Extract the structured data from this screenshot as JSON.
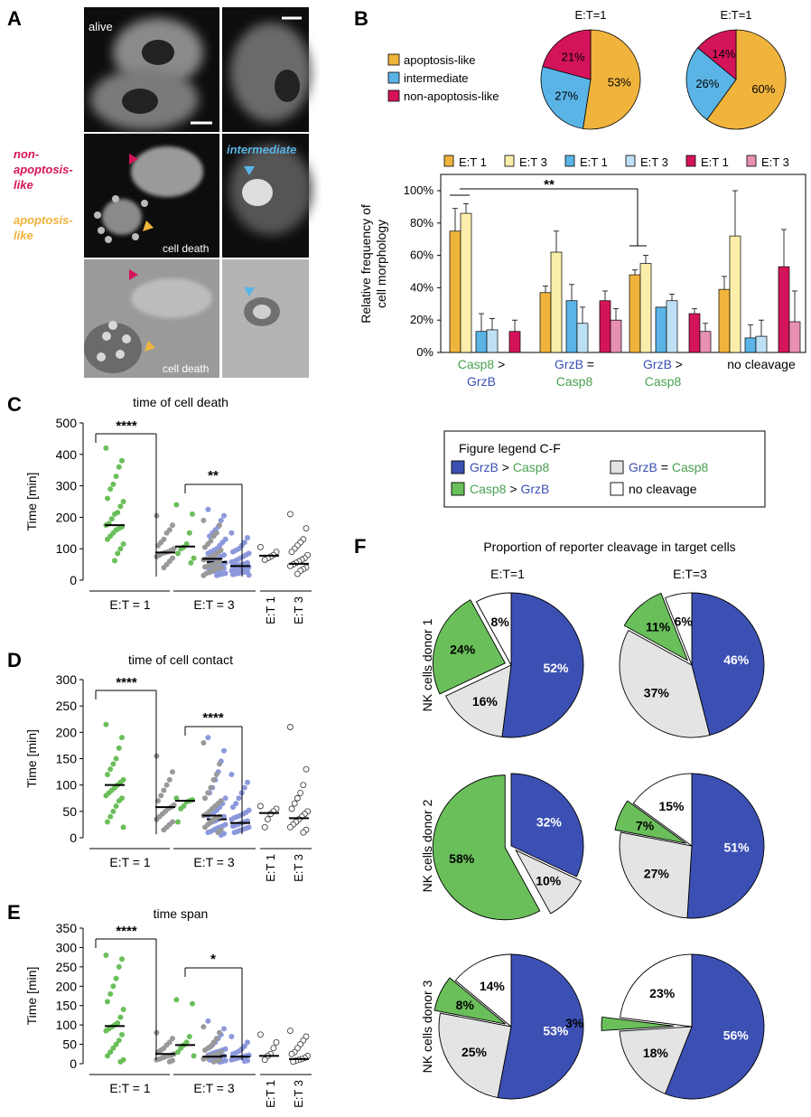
{
  "panels": {
    "A": "A",
    "B": "B",
    "C": "C",
    "D": "D",
    "E": "E",
    "F": "F"
  },
  "panelA": {
    "alive": "alive",
    "nonapop": [
      "non-",
      "apoptosis-",
      "like"
    ],
    "apop": [
      "apoptosis-",
      "like"
    ],
    "intermediate": "intermediate",
    "cell_death": "cell death",
    "colors": {
      "nonapop": "#d4145a",
      "apop": "#f0b43c",
      "intermediate": "#5ab4e6"
    }
  },
  "panelB": {
    "legend": [
      "apoptosis-like",
      "intermediate",
      "non-apoptosis-like"
    ],
    "legend_colors": [
      "#f0b43c",
      "#5ab4e6",
      "#d4145a"
    ],
    "pies": [
      {
        "title": "E:T=1",
        "slices": [
          {
            "label": "53%",
            "value": 53,
            "color": "#f0b43c"
          },
          {
            "label": "27%",
            "value": 27,
            "color": "#5ab4e6"
          },
          {
            "label": "21%",
            "value": 21,
            "color": "#d4145a"
          }
        ]
      },
      {
        "title": "E:T=1",
        "slices": [
          {
            "label": "60%",
            "value": 60,
            "color": "#f0b43c"
          },
          {
            "label": "26%",
            "value": 26,
            "color": "#5ab4e6"
          },
          {
            "label": "14%",
            "value": 14,
            "color": "#d4145a"
          }
        ]
      }
    ],
    "bar_legend": [
      {
        "label": "E:T 1",
        "color": "#f0b43c"
      },
      {
        "label": "E:T 3",
        "color": "#fbeeaa"
      },
      {
        "label": "E:T 1",
        "color": "#5ab4e6"
      },
      {
        "label": "E:T 3",
        "color": "#bee0f5"
      },
      {
        "label": "E:T 1",
        "color": "#d4145a"
      },
      {
        "label": "E:T 3",
        "color": "#e890b4"
      }
    ],
    "ylabel": [
      "Relative frequency of",
      "cell morphology"
    ],
    "yticks": [
      "0%",
      "20%",
      "40%",
      "60%",
      "80%",
      "100%"
    ],
    "significance": "**",
    "groups": [
      {
        "lines": [
          {
            "t": "Casp8",
            "c": "#4aa050"
          },
          {
            "t": "GrzB",
            "c": "#3c50b4"
          }
        ],
        "sep": " >"
      },
      {
        "lines": [
          {
            "t": "GrzB",
            "c": "#3c50b4"
          },
          {
            "t": "Casp8",
            "c": "#4aa050"
          }
        ],
        "sep": " ="
      },
      {
        "lines": [
          {
            "t": "GrzB",
            "c": "#3c50b4"
          },
          {
            "t": "Casp8",
            "c": "#4aa050"
          }
        ],
        "sep": " >"
      },
      {
        "lines": [
          {
            "t": "no cleavage",
            "c": "#000000"
          }
        ],
        "sep": ""
      }
    ]
  },
  "chart_data": {
    "type": "bar",
    "categories": [
      "Casp8 > GrzB",
      "GrzB = Casp8",
      "GrzB > Casp8",
      "no cleavage"
    ],
    "series_labels": [
      "apoptosis-like E:T 1",
      "apoptosis-like E:T 3",
      "intermediate E:T 1",
      "intermediate E:T 3",
      "non-apoptosis-like E:T 1",
      "non-apoptosis-like E:T 3"
    ],
    "values": [
      [
        75,
        86,
        13,
        14,
        13,
        0
      ],
      [
        37,
        62,
        32,
        18,
        32,
        20
      ],
      [
        48,
        55,
        28,
        32,
        24,
        13
      ],
      [
        39,
        72,
        9,
        10,
        53,
        19
      ]
    ],
    "errors": [
      [
        14,
        6,
        11,
        7,
        7,
        0
      ],
      [
        4,
        13,
        10,
        10,
        6,
        7
      ],
      [
        3,
        5,
        0,
        4,
        3,
        5
      ],
      [
        8,
        28,
        8,
        10,
        23,
        19
      ]
    ],
    "ylim": [
      0,
      100
    ]
  },
  "dot_panels": [
    {
      "title": "time of cell death",
      "ylabel": "Time [min]",
      "yticks": [
        0,
        100,
        200,
        300,
        400,
        500
      ],
      "ymax": 500,
      "sig1": "****",
      "sig2": "**",
      "groups": [
        {
          "color": "#6abf5a",
          "median": 175,
          "vals": [
            420,
            380,
            360,
            330,
            305,
            290,
            260,
            250,
            235,
            215,
            210,
            195,
            180,
            175,
            170,
            165,
            160,
            150,
            140,
            130,
            115,
            100,
            85,
            62
          ]
        },
        {
          "color": "#999999",
          "median": 88,
          "vals": [
            205,
            175,
            160,
            150,
            130,
            120,
            110,
            100,
            95,
            90,
            88,
            85,
            80,
            75,
            70,
            60,
            50,
            40
          ]
        },
        {
          "color": "#8c98dc",
          "median": 58,
          "vals": [
            225,
            205,
            190,
            170,
            160,
            150,
            140,
            130,
            120,
            110,
            100,
            95,
            90,
            85,
            80,
            75,
            70,
            65,
            60,
            58,
            55,
            52,
            50,
            48,
            45,
            42,
            40,
            38,
            35,
            32,
            30,
            28,
            25,
            22,
            20,
            18,
            15
          ]
        },
        {
          "color": "#6abf5a",
          "median": 107,
          "vals": [
            240,
            210,
            150,
            115,
            105,
            100,
            85,
            70,
            55
          ]
        },
        {
          "color": "#999999",
          "median": 68,
          "vals": [
            190,
            175,
            150,
            140,
            125,
            115,
            105,
            95,
            88,
            80,
            75,
            70,
            68,
            65,
            60,
            55,
            50,
            48,
            45,
            42,
            40,
            38,
            35,
            30,
            25,
            22,
            15
          ]
        },
        {
          "color": "#8c98dc",
          "median": 45,
          "vals": [
            150,
            135,
            120,
            110,
            100,
            95,
            90,
            85,
            80,
            75,
            70,
            65,
            60,
            58,
            55,
            52,
            50,
            48,
            46,
            44,
            42,
            40,
            38,
            36,
            34,
            32,
            30,
            28,
            26,
            24,
            22,
            20,
            18,
            16
          ]
        },
        {
          "color": "#ffffff",
          "median": 78,
          "vals": [
            105,
            90,
            80,
            75,
            70,
            65
          ]
        },
        {
          "color": "#ffffff",
          "median": 52,
          "vals": [
            210,
            165,
            130,
            120,
            110,
            100,
            90,
            80,
            70,
            65,
            60,
            55,
            50,
            45,
            40,
            35,
            30,
            20
          ]
        }
      ]
    },
    {
      "title": "time of cell contact",
      "ylabel": "Time [min]",
      "yticks": [
        0,
        50,
        100,
        150,
        200,
        250,
        300
      ],
      "ymax": 300,
      "sig1": "****",
      "sig2": "****",
      "groups": [
        {
          "color": "#6abf5a",
          "median": 100,
          "vals": [
            215,
            190,
            170,
            150,
            140,
            130,
            120,
            110,
            105,
            100,
            95,
            90,
            85,
            80,
            75,
            70,
            60,
            50,
            40,
            30,
            20
          ]
        },
        {
          "color": "#999999",
          "median": 58,
          "vals": [
            155,
            125,
            110,
            100,
            90,
            80,
            70,
            62,
            58,
            55,
            50,
            45,
            40,
            35,
            30,
            25,
            20,
            15
          ]
        },
        {
          "color": "#8c98dc",
          "median": 35,
          "vals": [
            190,
            165,
            145,
            125,
            110,
            95,
            85,
            75,
            65,
            58,
            52,
            48,
            45,
            42,
            40,
            38,
            35,
            32,
            30,
            28,
            25,
            22,
            20,
            18,
            15,
            12,
            10,
            8,
            5
          ]
        },
        {
          "color": "#6abf5a",
          "median": 70,
          "vals": [
            75,
            72,
            70,
            68,
            60,
            55,
            30
          ]
        },
        {
          "color": "#999999",
          "median": 42,
          "vals": [
            180,
            140,
            120,
            110,
            95,
            85,
            75,
            70,
            65,
            60,
            55,
            50,
            45,
            42,
            40,
            38,
            35,
            30,
            25,
            20,
            15,
            10
          ]
        },
        {
          "color": "#8c98dc",
          "median": 28,
          "vals": [
            120,
            105,
            95,
            85,
            75,
            65,
            58,
            52,
            48,
            45,
            42,
            40,
            38,
            35,
            32,
            30,
            28,
            26,
            24,
            22,
            20,
            18,
            16,
            14,
            12,
            10
          ]
        },
        {
          "color": "#ffffff",
          "median": 47,
          "vals": [
            60,
            55,
            50,
            45,
            35,
            20
          ]
        },
        {
          "color": "#ffffff",
          "median": 37,
          "vals": [
            210,
            130,
            100,
            85,
            75,
            65,
            55,
            50,
            45,
            40,
            35,
            30,
            25,
            20,
            15,
            10
          ]
        }
      ]
    },
    {
      "title": "time span",
      "ylabel": "Time [min]",
      "yticks": [
        0,
        50,
        100,
        150,
        200,
        250,
        300,
        350
      ],
      "ymax": 350,
      "sig1": "****",
      "sig2": "*",
      "groups": [
        {
          "color": "#6abf5a",
          "median": 97,
          "vals": [
            280,
            270,
            250,
            220,
            200,
            180,
            160,
            140,
            120,
            105,
            100,
            95,
            90,
            85,
            75,
            60,
            50,
            40,
            30,
            20,
            10,
            5
          ]
        },
        {
          "color": "#999999",
          "median": 25,
          "vals": [
            80,
            65,
            55,
            48,
            40,
            35,
            30,
            25,
            22,
            20,
            18,
            15,
            12,
            10,
            8,
            5
          ]
        },
        {
          "color": "#8c98dc",
          "median": 20,
          "vals": [
            110,
            90,
            75,
            65,
            55,
            48,
            42,
            38,
            35,
            32,
            30,
            28,
            25,
            22,
            20,
            18,
            16,
            14,
            12,
            10,
            8,
            6,
            4
          ]
        },
        {
          "color": "#6abf5a",
          "median": 48,
          "vals": [
            165,
            155,
            70,
            55,
            48,
            40,
            30,
            20
          ]
        },
        {
          "color": "#999999",
          "median": 18,
          "vals": [
            95,
            80,
            65,
            55,
            45,
            40,
            35,
            30,
            25,
            22,
            20,
            18,
            15,
            12,
            10,
            8,
            5
          ]
        },
        {
          "color": "#8c98dc",
          "median": 18,
          "vals": [
            70,
            55,
            45,
            38,
            32,
            28,
            25,
            22,
            20,
            18,
            16,
            14,
            12,
            10,
            8,
            6
          ]
        },
        {
          "color": "#ffffff",
          "median": 20,
          "vals": [
            75,
            55,
            40,
            25,
            20,
            10
          ]
        },
        {
          "color": "#ffffff",
          "median": 12,
          "vals": [
            85,
            70,
            60,
            50,
            40,
            30,
            25,
            20,
            15,
            12,
            10,
            8,
            5
          ]
        }
      ]
    }
  ],
  "xgroups": {
    "et1": "E:T = 1",
    "et3": "E:T = 3",
    "s1": "E:T 1",
    "s3": "E:T 3"
  },
  "legendCF": {
    "title": "Figure legend C-F",
    "items": [
      {
        "parts": [
          {
            "t": "GrzB",
            "c": "#3c50b4"
          },
          {
            "t": " > ",
            "c": "#000000"
          },
          {
            "t": "Casp8",
            "c": "#4aa050"
          }
        ],
        "box": "#3c50b4"
      },
      {
        "parts": [
          {
            "t": "GrzB",
            "c": "#3c50b4"
          },
          {
            "t": " = ",
            "c": "#000000"
          },
          {
            "t": "Casp8",
            "c": "#4aa050"
          }
        ],
        "box": "#e4e4e4"
      },
      {
        "parts": [
          {
            "t": "Casp8",
            "c": "#4aa050"
          },
          {
            "t": " > ",
            "c": "#000000"
          },
          {
            "t": "GrzB",
            "c": "#3c50b4"
          }
        ],
        "box": "#6abf5a"
      },
      {
        "parts": [
          {
            "t": "no cleavage",
            "c": "#000000"
          }
        ],
        "box": "#ffffff"
      }
    ]
  },
  "panelF": {
    "title": "Proportion of reporter cleavage in target cells",
    "cols": [
      "E:T=1",
      "E:T=3"
    ],
    "rows": [
      "NK cells donor 1",
      "NK cells donor 2",
      "NK cells donor 3"
    ],
    "pies": [
      [
        {
          "grzb": 52,
          "eq": 16,
          "casp": 24,
          "none": 8
        },
        {
          "grzb": 46,
          "eq": 37,
          "casp": 11,
          "none": 6
        }
      ],
      [
        {
          "grzb": 32,
          "eq": 10,
          "casp": 58,
          "none": 0
        },
        {
          "grzb": 51,
          "eq": 27,
          "casp": 7,
          "none": 15
        }
      ],
      [
        {
          "grzb": 53,
          "eq": 25,
          "casp": 8,
          "none": 14
        },
        {
          "grzb": 56,
          "eq": 18,
          "casp": 3,
          "none": 23
        }
      ]
    ],
    "colors": {
      "grzb": "#3c50b4",
      "eq": "#e4e4e4",
      "casp": "#6abf5a",
      "none": "#ffffff"
    }
  }
}
